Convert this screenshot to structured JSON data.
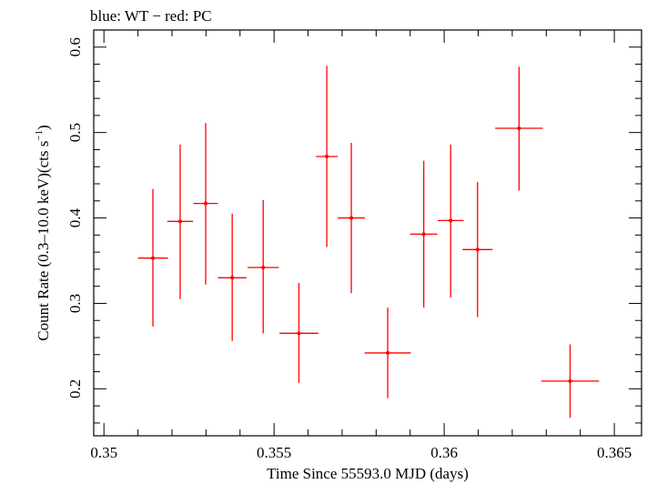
{
  "chart_data": {
    "type": "scatter",
    "title": "blue: WT − red: PC",
    "xlabel": "Time Since 55593.0 MJD (days)",
    "ylabel_main": "Count Rate (0.3–10.0 keV)(cts s",
    "ylabel_sup": "−1",
    "ylabel_close": ")",
    "xlim": [
      0.3497,
      0.3658
    ],
    "ylim": [
      0.145,
      0.62
    ],
    "xticks": [
      0.35,
      0.355,
      0.36,
      0.365
    ],
    "xtick_labels": [
      "0.35",
      "0.355",
      "0.36",
      "0.365"
    ],
    "yticks": [
      0.2,
      0.3,
      0.4,
      0.5,
      0.6
    ],
    "ytick_labels": [
      "0.2",
      "0.3",
      "0.4",
      "0.5",
      "0.6"
    ],
    "series": [
      {
        "color": "#ff0000",
        "points": [
          {
            "x": 0.35144,
            "y": 0.353,
            "xerr": 0.00044,
            "ylo": 0.273,
            "yhi": 0.434
          },
          {
            "x": 0.35224,
            "y": 0.396,
            "xerr": 0.00038,
            "ylo": 0.305,
            "yhi": 0.486
          },
          {
            "x": 0.35299,
            "y": 0.417,
            "xerr": 0.00036,
            "ylo": 0.322,
            "yhi": 0.511
          },
          {
            "x": 0.35377,
            "y": 0.33,
            "xerr": 0.00042,
            "ylo": 0.256,
            "yhi": 0.405
          },
          {
            "x": 0.35468,
            "y": 0.342,
            "xerr": 0.00046,
            "ylo": 0.265,
            "yhi": 0.421
          },
          {
            "x": 0.35573,
            "y": 0.265,
            "xerr": 0.00057,
            "ylo": 0.207,
            "yhi": 0.324
          },
          {
            "x": 0.35655,
            "y": 0.472,
            "xerr": 0.00032,
            "ylo": 0.366,
            "yhi": 0.578
          },
          {
            "x": 0.35727,
            "y": 0.4,
            "xerr": 0.0004,
            "ylo": 0.312,
            "yhi": 0.488
          },
          {
            "x": 0.35834,
            "y": 0.242,
            "xerr": 0.00068,
            "ylo": 0.189,
            "yhi": 0.295
          },
          {
            "x": 0.3594,
            "y": 0.381,
            "xerr": 0.0004,
            "ylo": 0.295,
            "yhi": 0.467
          },
          {
            "x": 0.36019,
            "y": 0.397,
            "xerr": 0.00038,
            "ylo": 0.307,
            "yhi": 0.486
          },
          {
            "x": 0.36098,
            "y": 0.363,
            "xerr": 0.00044,
            "ylo": 0.284,
            "yhi": 0.442
          },
          {
            "x": 0.3622,
            "y": 0.505,
            "xerr": 0.0007,
            "ylo": 0.432,
            "yhi": 0.577
          },
          {
            "x": 0.3637,
            "y": 0.209,
            "xerr": 0.00085,
            "ylo": 0.166,
            "yhi": 0.252
          }
        ]
      }
    ]
  }
}
